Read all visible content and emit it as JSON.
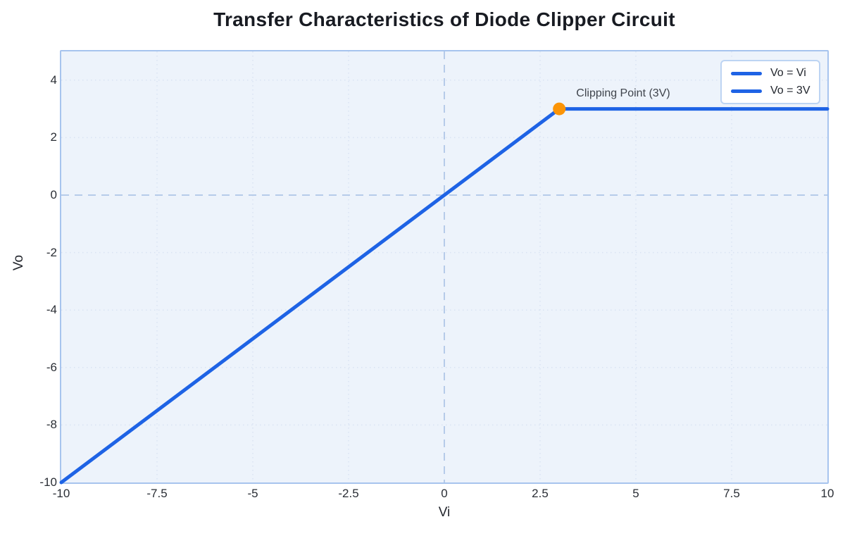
{
  "chart_data": {
    "type": "line",
    "title": "Transfer Characteristics of Diode Clipper Circuit",
    "xlabel": "Vi",
    "ylabel": "Vo",
    "xlim": [
      -10,
      10
    ],
    "ylim": [
      -10,
      5
    ],
    "xticks": [
      -10,
      -7.5,
      -5,
      -2.5,
      0,
      2.5,
      5,
      7.5,
      10
    ],
    "yticks": [
      4,
      2,
      0,
      -2,
      -4,
      -6,
      -8,
      -10
    ],
    "grid": true,
    "zero_axes_dashed": true,
    "legend_position": "upper-right",
    "series": [
      {
        "name": "Vo = Vi",
        "color": "#1e63e5",
        "x": [
          -10,
          3
        ],
        "y": [
          -10,
          3
        ]
      },
      {
        "name": "Vo = 3V",
        "color": "#1e63e5",
        "x": [
          3,
          10
        ],
        "y": [
          3,
          3
        ]
      }
    ],
    "annotation": {
      "label": "Clipping Point (3V)",
      "x": 3,
      "y": 3,
      "marker_color": "#fb9407",
      "marker_radius": 9
    },
    "colors": {
      "page_background": "#ffffff",
      "plot_background": "#edf3fb",
      "plot_border": "#a7c4ee",
      "grid": "#d9e3f3",
      "zero_axis": "#b6cbe9",
      "line": "#1e63e5",
      "marker": "#fb9407"
    }
  }
}
